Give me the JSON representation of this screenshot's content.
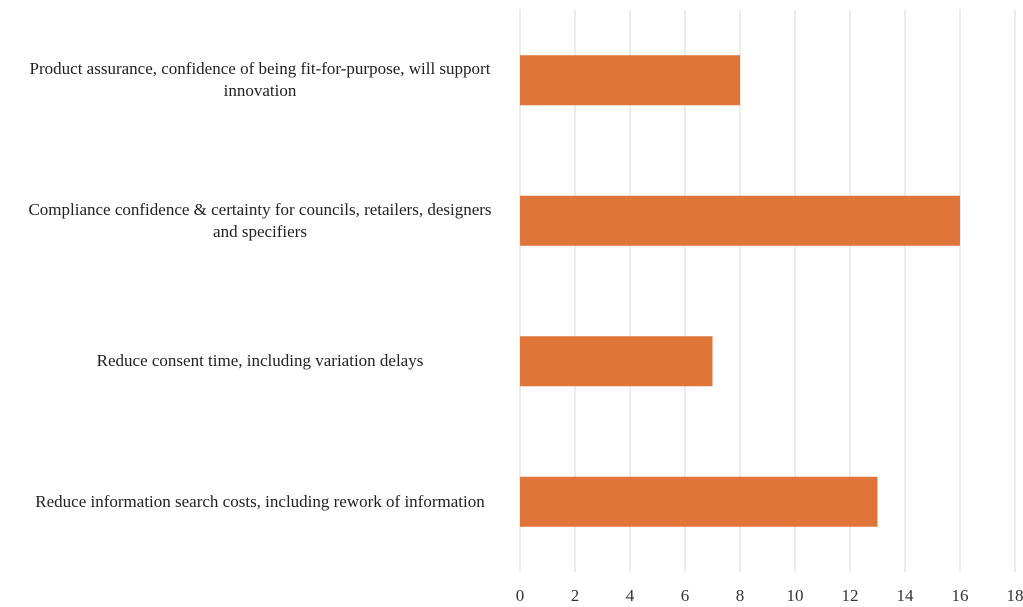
{
  "chart_data": {
    "type": "bar",
    "orientation": "horizontal",
    "categories": [
      "Product assurance, confidence of being fit-for-purpose, will support innovation",
      "Compliance confidence & certainty for councils, retailers, designers and specifiers",
      "Reduce consent time, including variation delays",
      "Reduce information search costs, including rework of information"
    ],
    "values": [
      8,
      16,
      7,
      13
    ],
    "color": "#e07539",
    "xlim": [
      0,
      18
    ],
    "xticks": [
      0,
      2,
      4,
      6,
      8,
      10,
      12,
      14,
      16,
      18
    ],
    "grid": true
  }
}
